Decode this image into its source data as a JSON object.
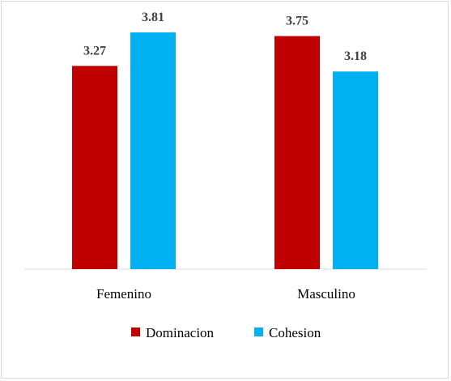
{
  "chart_data": {
    "type": "bar",
    "categories": [
      "Femenino",
      "Masculino"
    ],
    "series": [
      {
        "name": "Dominacion",
        "color": "#c00000",
        "values": [
          3.27,
          3.75
        ]
      },
      {
        "name": "Cohesion",
        "color": "#00b0f0",
        "values": [
          3.81,
          3.18
        ]
      }
    ],
    "data_labels": [
      [
        "3.27",
        "3.75"
      ],
      [
        "3.81",
        "3.18"
      ]
    ],
    "ylim": [
      0,
      4.2
    ],
    "grid": false,
    "legend_position": "bottom",
    "title": "",
    "xlabel": "",
    "ylabel": ""
  }
}
